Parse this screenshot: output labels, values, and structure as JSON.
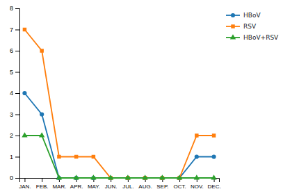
{
  "chart_data": {
    "type": "line",
    "categories": [
      "JAN.",
      "FEB.",
      "MAR.",
      "APR.",
      "MAY.",
      "JUN.",
      "JUL.",
      "AUG.",
      "SEP.",
      "OCT.",
      "NOV.",
      "DEC."
    ],
    "series": [
      {
        "name": "HBoV",
        "values": [
          4,
          3,
          0,
          0,
          0,
          0,
          0,
          0,
          0,
          0,
          1,
          1
        ],
        "marker": "circle"
      },
      {
        "name": "RSV",
        "values": [
          7,
          6,
          1,
          1,
          1,
          0,
          0,
          0,
          0,
          0,
          2,
          2
        ],
        "marker": "square"
      },
      {
        "name": "HBoV+RSV",
        "values": [
          2,
          2,
          0,
          0,
          0,
          0,
          0,
          0,
          0,
          0,
          0,
          0
        ],
        "marker": "triangle"
      }
    ],
    "ylim": [
      0,
      8
    ],
    "yticks": [
      0,
      1,
      2,
      3,
      4,
      5,
      6,
      7,
      8
    ],
    "legend": "upper right",
    "grid": false
  }
}
